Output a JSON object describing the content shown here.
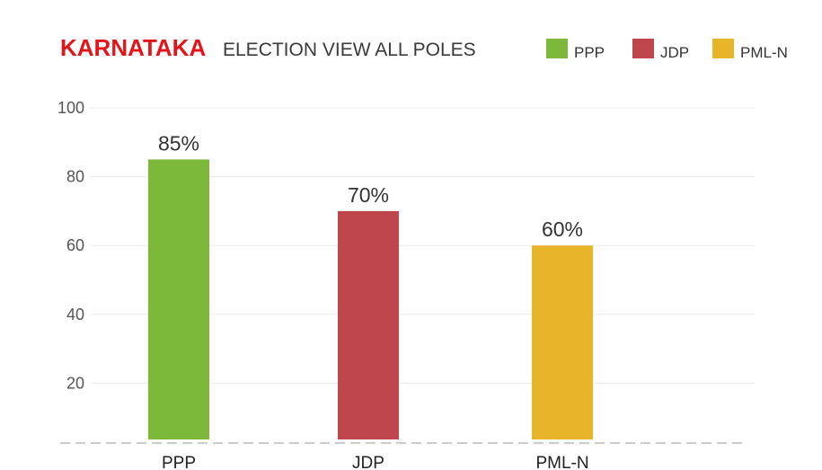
{
  "chart_data": {
    "type": "bar",
    "title": "KARNATAKA",
    "subtitle": "ELECTION VIEW ALL POLES",
    "categories": [
      "PPP",
      "JDP",
      "PML-N"
    ],
    "values": [
      85,
      70,
      60
    ],
    "value_labels": [
      "85%",
      "70%",
      "60%"
    ],
    "colors": [
      "#7cb83a",
      "#c0464d",
      "#e7b42a"
    ],
    "title_color": "#e3151b",
    "ylim": [
      0,
      100
    ],
    "yticks": [
      20,
      40,
      60,
      80,
      100
    ],
    "grid": true,
    "legend": {
      "placement": "top-right",
      "entries": [
        {
          "label": "PPP",
          "color": "#7cb83a"
        },
        {
          "label": "JDP",
          "color": "#c0464d"
        },
        {
          "label": "PML-N",
          "color": "#e7b42a"
        }
      ]
    }
  }
}
